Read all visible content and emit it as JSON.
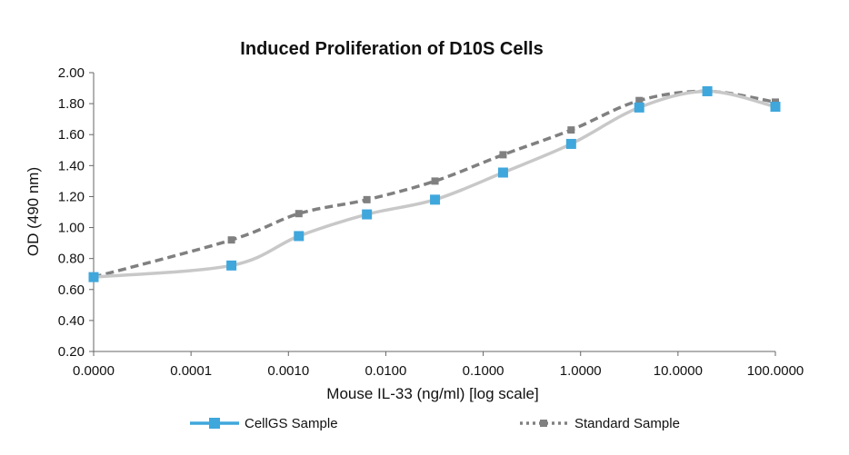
{
  "chart_data": {
    "type": "line",
    "title": "Induced Proliferation of D10S Cells",
    "xlabel": "Mouse IL-33 (ng/ml) [log scale]",
    "ylabel": "OD (490 nm)",
    "x_scale": "log",
    "x_tick_labels": [
      "0.0000",
      "0.0001",
      "0.0010",
      "0.0100",
      "0.1000",
      "1.0000",
      "10.0000",
      "100.0000"
    ],
    "y_tick_labels": [
      "0.20",
      "0.40",
      "0.60",
      "0.80",
      "1.00",
      "1.20",
      "1.40",
      "1.60",
      "1.80",
      "2.00"
    ],
    "ylim": [
      0.2,
      2.0
    ],
    "grid": false,
    "legend_position": "bottom",
    "series": [
      {
        "name": "CellGS Sample",
        "style": "solid",
        "line_color": "#c8c8c8",
        "marker_color": "#3fa7dc",
        "x": [
          1e-05,
          0.00026,
          0.00128,
          0.0064,
          0.032,
          0.16,
          0.8,
          4.0,
          20.0,
          100.0
        ],
        "y": [
          0.68,
          0.755,
          0.945,
          1.085,
          1.18,
          1.355,
          1.54,
          1.775,
          1.88,
          1.78
        ]
      },
      {
        "name": "Standard Sample",
        "style": "dashed",
        "line_color": "#808080",
        "marker_color": "#808080",
        "x": [
          1e-05,
          0.00026,
          0.00128,
          0.0064,
          0.032,
          0.16,
          0.8,
          4.0,
          20.0,
          100.0
        ],
        "y": [
          0.68,
          0.92,
          1.09,
          1.18,
          1.3,
          1.47,
          1.63,
          1.82,
          1.88,
          1.81
        ]
      }
    ]
  }
}
